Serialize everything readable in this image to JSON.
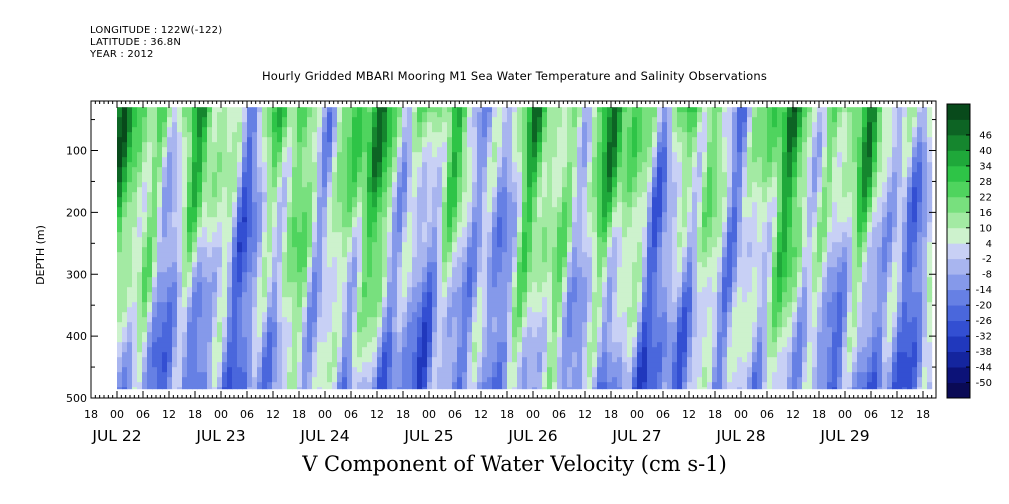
{
  "header": {
    "longitude": "LONGITUDE : 122W(-122)",
    "latitude": "LATITUDE : 36.8N",
    "year": "YEAR : 2012"
  },
  "chart_data": {
    "type": "heatmap",
    "title": "Hourly Gridded MBARI Mooring M1 Sea Water Temperature and Salinity Observations",
    "variable_label": "V Component of Water Velocity (cm s-1)",
    "ylabel": "DEPTH (m)",
    "ylim": [
      500,
      20
    ],
    "y_inverted": true,
    "y_ticks": [
      100,
      200,
      300,
      400,
      500
    ],
    "x_range": [
      "2012-07-21T18:00",
      "2012-07-29T21:00"
    ],
    "data_x_range": [
      "2012-07-22T00:00",
      "2012-07-29T20:00"
    ],
    "data_y_range": [
      30,
      485
    ],
    "hour_tick_labels": [
      "18",
      "00",
      "06",
      "12",
      "18",
      "00",
      "06",
      "12",
      "18",
      "00",
      "06",
      "12",
      "18",
      "00",
      "06",
      "12",
      "18",
      "00",
      "06",
      "12",
      "18",
      "00",
      "06",
      "12",
      "18",
      "00",
      "06",
      "12",
      "18",
      "00",
      "06",
      "12",
      "18"
    ],
    "day_labels": [
      {
        "label": "JUL 22",
        "day": 22
      },
      {
        "label": "JUL 23",
        "day": 23
      },
      {
        "label": "JUL 24",
        "day": 24
      },
      {
        "label": "JUL 25",
        "day": 25
      },
      {
        "label": "JUL 26",
        "day": 26
      },
      {
        "label": "JUL 27",
        "day": 27
      },
      {
        "label": "JUL 28",
        "day": 28
      },
      {
        "label": "JUL 29",
        "day": 29
      }
    ],
    "colorbar": {
      "levels": [
        -50,
        -44,
        -38,
        -32,
        -26,
        -20,
        -14,
        -8,
        -2,
        4,
        10,
        16,
        22,
        28,
        34,
        40,
        46
      ],
      "labels": [
        "46",
        "40",
        "34",
        "28",
        "22",
        "16",
        "10",
        "4",
        "-2",
        "-8",
        "-14",
        "-20",
        "-26",
        "-32",
        "-38",
        "-44",
        "-50"
      ],
      "colors": [
        "#0a0a55",
        "#0c1278",
        "#14259e",
        "#2038bd",
        "#334fd2",
        "#4a67dc",
        "#6680e4",
        "#8599ea",
        "#a8b5ef",
        "#c8d0f5",
        "#cdf2cd",
        "#a3eaa3",
        "#78e07e",
        "#4fd45e",
        "#2ec447",
        "#1fa83a",
        "#15862e",
        "#0d6424",
        "#084a1b"
      ]
    },
    "grid": false
  }
}
